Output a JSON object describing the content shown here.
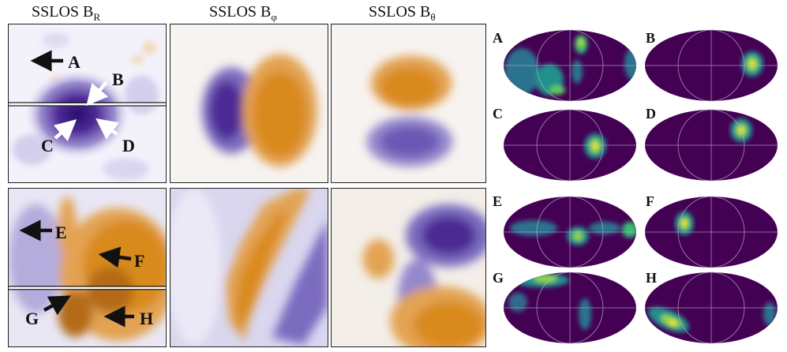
{
  "headers": {
    "br": {
      "base": "SSLOS B",
      "sub": "R"
    },
    "bphi": {
      "base": "SSLOS B",
      "sub": "φ"
    },
    "btheta": {
      "base": "SSLOS B",
      "sub": "θ"
    }
  },
  "arrow_labels": [
    "A",
    "B",
    "C",
    "D",
    "E",
    "F",
    "G",
    "H"
  ],
  "projection_labels": [
    "A",
    "B",
    "C",
    "D",
    "E",
    "F",
    "G",
    "H"
  ],
  "colors": {
    "positive": "#d98a1f",
    "negative": "#4b2a94",
    "map_background": "#440154",
    "map_hot": "#fde725"
  }
}
